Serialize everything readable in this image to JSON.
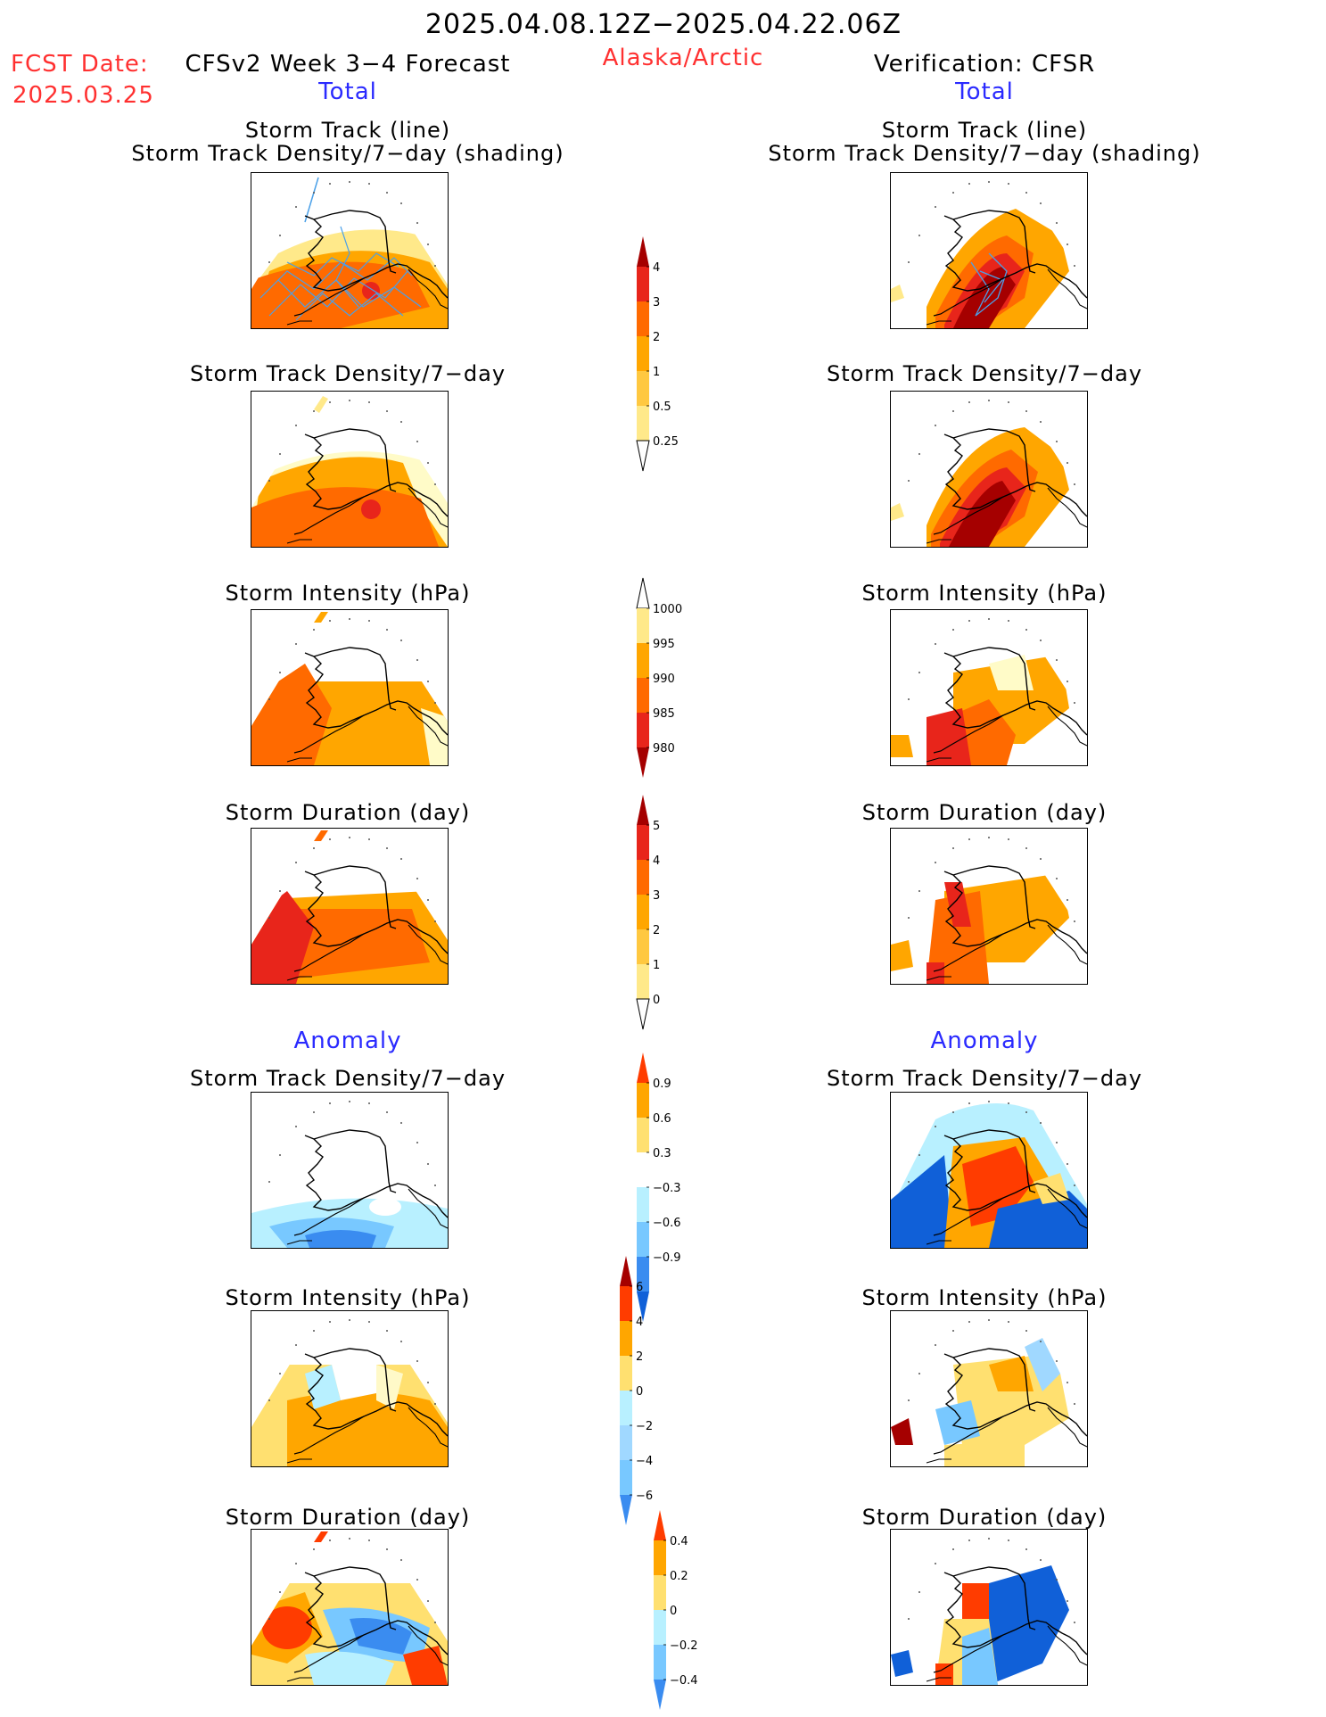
{
  "header": {
    "date_range": "2025.04.08.12Z−2025.04.22.06Z",
    "fcst_label": "FCST Date:",
    "fcst_date": "2025.03.25",
    "forecast_name": "CFSv2 Week 3−4 Forecast",
    "region": "Alaska/Arctic",
    "verification": "Verification: CFSR"
  },
  "sections": {
    "total_left": "Total",
    "total_right": "Total",
    "anomaly_left": "Anomaly",
    "anomaly_right": "Anomaly"
  },
  "panel_titles": {
    "track_line": "Storm Track (line)",
    "track_shading": "Storm Track Density/7−day (shading)",
    "density": "Storm Track Density/7−day",
    "intensity": "Storm Intensity (hPa)",
    "duration": "Storm Duration (day)"
  },
  "colorbars": {
    "total_density": {
      "labels": [
        "4",
        "3",
        "2",
        "1",
        "0.5",
        "0.25"
      ],
      "colors": [
        "#a50000",
        "#e8251b",
        "#ff6a00",
        "#ffa600",
        "#ffc840",
        "#ffe98a",
        "#fffbc8"
      ]
    },
    "total_intensity": {
      "labels": [
        "1000",
        "995",
        "990",
        "985",
        "980"
      ],
      "colors": [
        "#fffbc8",
        "#ffe98a",
        "#ffa600",
        "#ff6a00",
        "#e8251b",
        "#a50000"
      ]
    },
    "total_duration": {
      "labels": [
        "5",
        "4",
        "3",
        "2",
        "1",
        "0"
      ],
      "colors": [
        "#a50000",
        "#e8251b",
        "#ff6a00",
        "#ffa600",
        "#ffc840",
        "#ffe98a",
        "#fffbc8"
      ]
    },
    "anom_density": {
      "labels": [
        "0.9",
        "0.6",
        "0.3",
        "−0.3",
        "−0.6",
        "−0.9"
      ],
      "colors": [
        "#ff3c00",
        "#ffa600",
        "#ffe070",
        "#ffffff",
        "#b8f0ff",
        "#78c8ff",
        "#3a8cf0",
        "#1060d8"
      ]
    },
    "anom_intensity": {
      "labels": [
        "6",
        "4",
        "2",
        "0",
        "−2",
        "−4",
        "−6"
      ],
      "colors": [
        "#a50000",
        "#ff3c00",
        "#ffa600",
        "#ffe070",
        "#b8f0ff",
        "#a0d8ff",
        "#78c8ff",
        "#3a8cf0"
      ]
    },
    "anom_duration": {
      "labels": [
        "0.4",
        "0.2",
        "0",
        "−0.2",
        "−0.4"
      ],
      "colors": [
        "#ff3c00",
        "#ffa600",
        "#ffe070",
        "#b8f0ff",
        "#78c8ff",
        "#3a8cf0"
      ]
    }
  }
}
